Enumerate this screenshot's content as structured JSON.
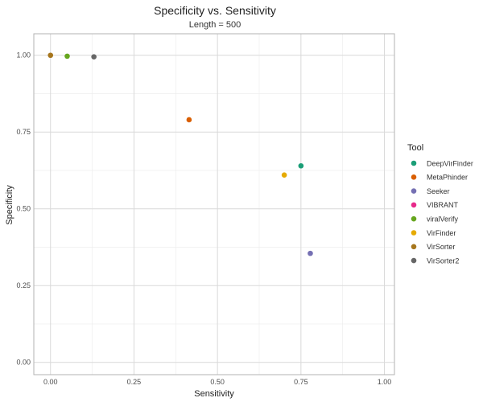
{
  "chart_data": {
    "type": "scatter",
    "title": "Specificity vs. Sensitivity",
    "subtitle": "Length = 500",
    "xlabel": "Sensitivity",
    "ylabel": "Specificity",
    "xlim": [
      -0.05,
      1.03
    ],
    "ylim": [
      -0.04,
      1.07
    ],
    "x_ticks": [
      0.0,
      0.25,
      0.5,
      0.75,
      1.0
    ],
    "x_tick_labels": [
      "0.00",
      "0.25",
      "0.50",
      "0.75",
      "1.00"
    ],
    "y_ticks": [
      0.0,
      0.25,
      0.5,
      0.75,
      1.0
    ],
    "y_tick_labels": [
      "0.00",
      "0.25",
      "0.50",
      "0.75",
      "1.00"
    ],
    "grid": true,
    "legend": {
      "title": "Tool",
      "placement": "right"
    },
    "series": [
      {
        "name": "DeepVirFinder",
        "color": "#1b9e77",
        "x": [
          0.75
        ],
        "y": [
          0.64
        ]
      },
      {
        "name": "MetaPhinder",
        "color": "#d95f02",
        "x": [
          0.415
        ],
        "y": [
          0.79
        ]
      },
      {
        "name": "Seeker",
        "color": "#7570b3",
        "x": [
          0.778
        ],
        "y": [
          0.355
        ]
      },
      {
        "name": "VIBRANT",
        "color": "#e7298a",
        "x": [],
        "y": []
      },
      {
        "name": "viralVerify",
        "color": "#66a61e",
        "x": [
          0.05
        ],
        "y": [
          0.997
        ]
      },
      {
        "name": "VirFinder",
        "color": "#e6ab02",
        "x": [
          0.7
        ],
        "y": [
          0.61
        ]
      },
      {
        "name": "VirSorter",
        "color": "#a6761d",
        "x": [
          0.0
        ],
        "y": [
          1.0
        ]
      },
      {
        "name": "VirSorter2",
        "color": "#666666",
        "x": [
          0.13
        ],
        "y": [
          0.995
        ]
      }
    ]
  }
}
